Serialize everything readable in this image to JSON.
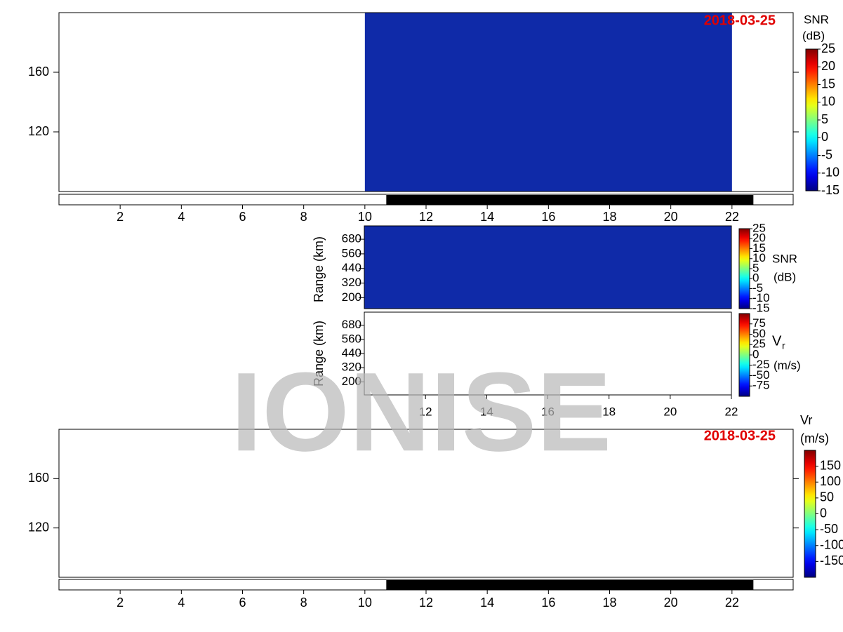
{
  "chart_data": [
    {
      "type": "heatmap",
      "title": "2018-03-25",
      "colormap": "jet",
      "background": "#0f2aa8",
      "xlim": [
        0,
        24
      ],
      "xticks": [
        2,
        4,
        6,
        8,
        10,
        12,
        14,
        16,
        18,
        20,
        22
      ],
      "ylim": [
        80,
        200
      ],
      "yticks": [
        120,
        160
      ],
      "coverage": [
        10,
        22
      ],
      "bar": [
        10.7,
        22.7
      ],
      "cbar_labels": [
        "SNR",
        "(dB)"
      ],
      "clim": [
        -15,
        25
      ],
      "cticks": [
        25,
        20,
        15,
        10,
        5,
        0,
        -5,
        -10,
        -15
      ]
    },
    {
      "type": "heatmap",
      "colormap": "jet",
      "background": "#0f2aa8",
      "ylabel": "Range (km)",
      "xlim": [
        10,
        22
      ],
      "xticks": [],
      "ylim": [
        110,
        790
      ],
      "yticks": [
        200,
        320,
        440,
        560,
        680
      ],
      "coverage": [
        10,
        22
      ],
      "cbar_labels": [
        "SNR",
        "(dB)"
      ],
      "clim": [
        -15,
        25
      ],
      "cticks": [
        25,
        20,
        15,
        10,
        5,
        0,
        -5,
        -10,
        -15
      ]
    },
    {
      "type": "heatmap",
      "colormap": "jet",
      "background": "#ffffff",
      "ylabel": "Range (km)",
      "xlim": [
        10,
        22
      ],
      "xticks": [
        12,
        14,
        16,
        18,
        20,
        22
      ],
      "ylim": [
        90,
        790
      ],
      "yticks": [
        200,
        320,
        440,
        560,
        680
      ],
      "coverage": [
        10,
        22
      ],
      "cbar_labels": [
        "V",
        "r",
        "(m/s)"
      ],
      "clim": [
        -100,
        100
      ],
      "cticks": [
        75,
        50,
        25,
        0,
        -25,
        -50,
        -75
      ]
    },
    {
      "type": "heatmap",
      "title": "2018-03-25",
      "colormap": "jet",
      "background": "#ffffff",
      "xlim": [
        0,
        24
      ],
      "xticks": [
        2,
        4,
        6,
        8,
        10,
        12,
        14,
        16,
        18,
        20,
        22
      ],
      "ylim": [
        80,
        200
      ],
      "yticks": [
        120,
        160
      ],
      "coverage": [
        10,
        22
      ],
      "bar": [
        10.7,
        22.7
      ],
      "cbar_labels": [
        "Vr",
        "(m/s)"
      ],
      "clim": [
        -200,
        200
      ],
      "cticks": [
        150,
        100,
        50,
        0,
        -50,
        -100,
        -150
      ]
    }
  ],
  "watermark": "IONISE"
}
